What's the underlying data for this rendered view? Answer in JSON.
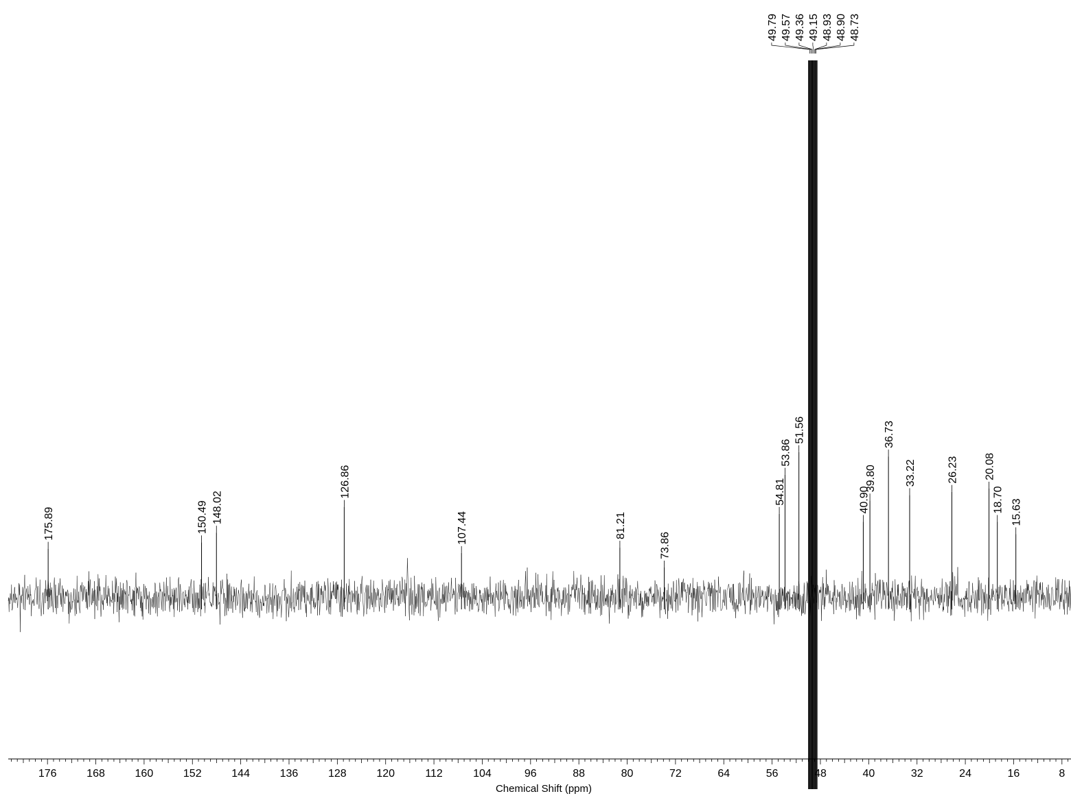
{
  "chart_data": {
    "type": "line",
    "title": "",
    "xlabel": "Chemical Shift (ppm)",
    "ylabel": "",
    "x_axis_reversed": true,
    "xlim": [
      182.5,
      6.5
    ],
    "x_ticks": [
      176,
      168,
      160,
      152,
      144,
      136,
      128,
      120,
      112,
      104,
      96,
      88,
      80,
      72,
      64,
      56,
      48,
      40,
      32,
      24,
      16,
      8
    ],
    "x_tick_labels": [
      "176",
      "168",
      "160",
      "152",
      "144",
      "136",
      "128",
      "120",
      "112",
      "104",
      "96",
      "88",
      "80",
      "72",
      "64",
      "56",
      "48",
      "40",
      "32",
      "24",
      "16",
      "8"
    ],
    "grid": false,
    "baseline_noise": true,
    "series": [
      {
        "peaks": [
          {
            "label": "175.89",
            "x": 175.89,
            "y": 0.09
          },
          {
            "label": "150.49",
            "x": 150.49,
            "y": 0.102
          },
          {
            "label": "148.02",
            "x": 148.02,
            "y": 0.12
          },
          {
            "label": "126.86",
            "x": 126.86,
            "y": 0.168
          },
          {
            "label": "107.44",
            "x": 107.44,
            "y": 0.082
          },
          {
            "label": "81.21",
            "x": 81.21,
            "y": 0.092
          },
          {
            "label": "73.86",
            "x": 73.86,
            "y": 0.055
          },
          {
            "label": "54.81",
            "x": 54.81,
            "y": 0.155
          },
          {
            "label": "53.86",
            "x": 53.86,
            "y": 0.228
          },
          {
            "label": "51.56",
            "x": 51.56,
            "y": 0.27
          },
          {
            "label": "49.79",
            "x": 49.79,
            "y": 1.0
          },
          {
            "label": "49.57",
            "x": 49.57,
            "y": 1.0
          },
          {
            "label": "49.36",
            "x": 49.36,
            "y": 1.0
          },
          {
            "label": "49.15",
            "x": 49.15,
            "y": 1.0
          },
          {
            "label": "48.93",
            "x": 48.93,
            "y": 1.0
          },
          {
            "label": "48.90",
            "x": 48.9,
            "y": 1.0
          },
          {
            "label": "48.73",
            "x": 48.73,
            "y": 1.0
          },
          {
            "label": "40.90",
            "x": 40.9,
            "y": 0.14
          },
          {
            "label": "39.80",
            "x": 39.8,
            "y": 0.18
          },
          {
            "label": "36.73",
            "x": 36.73,
            "y": 0.262
          },
          {
            "label": "33.22",
            "x": 33.22,
            "y": 0.19
          },
          {
            "label": "26.23",
            "x": 26.23,
            "y": 0.196
          },
          {
            "label": "20.08",
            "x": 20.08,
            "y": 0.202
          },
          {
            "label": "18.70",
            "x": 18.7,
            "y": 0.14
          },
          {
            "label": "15.63",
            "x": 15.63,
            "y": 0.117
          }
        ]
      }
    ]
  }
}
